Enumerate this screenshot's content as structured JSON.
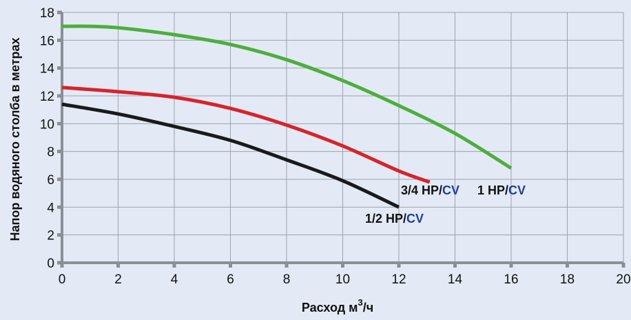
{
  "colors": {
    "background": "#e3eaf5",
    "grid": "#9aa3ad",
    "axis": "#8a8f96",
    "label_dark": "#111111",
    "label_blue": "#1f3f9a"
  },
  "chart_data": {
    "type": "line",
    "xlabel": "Расход м",
    "xlabel_sup": "3",
    "xlabel_suffix": "/ч",
    "ylabel": "Напор водяного столба в метрах",
    "xlim": [
      0,
      20
    ],
    "ylim": [
      0,
      18
    ],
    "x_ticks": [
      "0",
      "2",
      "4",
      "6",
      "8",
      "10",
      "12",
      "14",
      "16",
      "18",
      "20"
    ],
    "y_ticks": [
      "0",
      "2",
      "4",
      "6",
      "8",
      "10",
      "12",
      "14",
      "16",
      "18"
    ],
    "grid": true,
    "series": [
      {
        "label_main": "1/2 HP/",
        "label_accent": "CV",
        "color": "#1a1a1a",
        "points": [
          [
            0,
            11.4
          ],
          [
            2,
            10.7
          ],
          [
            4,
            9.8
          ],
          [
            6,
            8.8
          ],
          [
            8,
            7.4
          ],
          [
            10,
            5.9
          ],
          [
            12,
            4.0
          ]
        ]
      },
      {
        "label_main": "3/4 HP/",
        "label_accent": "CV",
        "color": "#d8232a",
        "points": [
          [
            0,
            12.6
          ],
          [
            2,
            12.3
          ],
          [
            4,
            11.9
          ],
          [
            6,
            11.1
          ],
          [
            8,
            9.9
          ],
          [
            10,
            8.4
          ],
          [
            12,
            6.6
          ],
          [
            13.1,
            5.8
          ]
        ]
      },
      {
        "label_main": "1 HP/",
        "label_accent": "CV",
        "color": "#4caf3d",
        "points": [
          [
            0,
            17.0
          ],
          [
            1,
            17.0
          ],
          [
            2,
            16.9
          ],
          [
            4,
            16.4
          ],
          [
            6,
            15.7
          ],
          [
            8,
            14.6
          ],
          [
            10,
            13.1
          ],
          [
            12,
            11.3
          ],
          [
            14,
            9.3
          ],
          [
            16,
            6.8
          ]
        ]
      }
    ]
  }
}
